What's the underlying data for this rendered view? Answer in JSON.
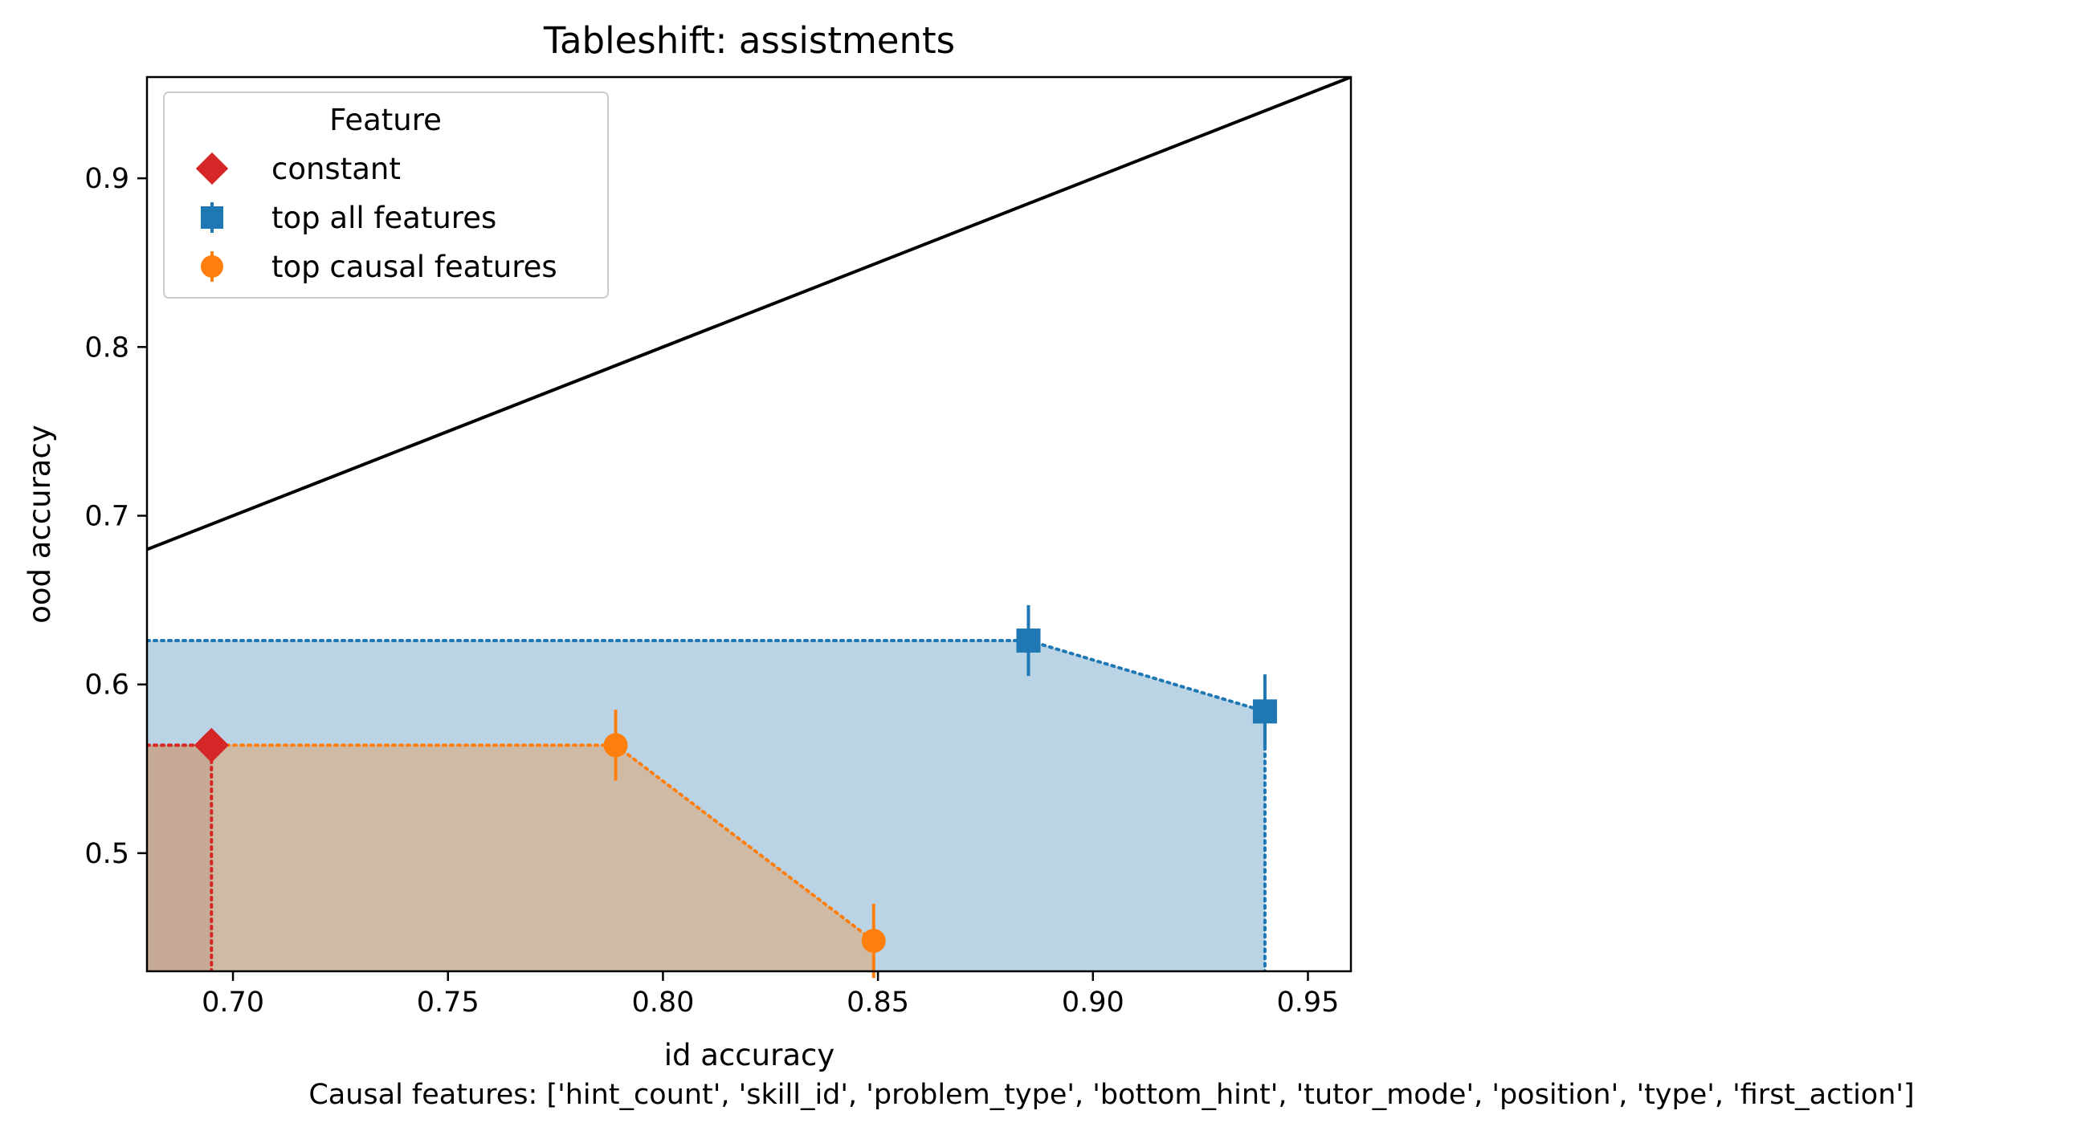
{
  "chart_data": {
    "type": "scatter",
    "title": "Tableshift: assistments",
    "xlabel": "id accuracy",
    "ylabel": "ood accuracy",
    "caption": "Causal features: ['hint_count', 'skill_id', 'problem_type', 'bottom_hint', 'tutor_mode', 'position', 'type', 'first_action']",
    "xlim": [
      0.68,
      0.96
    ],
    "ylim": [
      0.43,
      0.96
    ],
    "x_ticks": [
      0.7,
      0.75,
      0.8,
      0.85,
      0.9,
      0.95
    ],
    "y_ticks": [
      0.5,
      0.6,
      0.7,
      0.8,
      0.9
    ],
    "grid": false,
    "legend": {
      "title": "Feature",
      "placement": "top-left"
    },
    "reference_line": {
      "points": [
        [
          0.68,
          0.68
        ],
        [
          0.96,
          0.96
        ]
      ],
      "color": "#000000"
    },
    "series": [
      {
        "name": "constant",
        "color": "#d62728",
        "marker": "diamond",
        "points": [
          {
            "x": 0.695,
            "y": 0.564,
            "yerr": 0
          }
        ],
        "frontier": [
          [
            0.68,
            0.564
          ],
          [
            0.695,
            0.564
          ],
          [
            0.695,
            0.43
          ]
        ]
      },
      {
        "name": "top all features",
        "color": "#1f77b4",
        "fill": "#bad4e6",
        "marker": "square",
        "points": [
          {
            "x": 0.885,
            "y": 0.626,
            "yerr": 0.021
          },
          {
            "x": 0.94,
            "y": 0.584,
            "yerr": 0.022
          }
        ],
        "frontier": [
          [
            0.68,
            0.626
          ],
          [
            0.885,
            0.626
          ],
          [
            0.94,
            0.584
          ],
          [
            0.94,
            0.43
          ]
        ]
      },
      {
        "name": "top causal features",
        "color": "#ff7f0e",
        "fill": "#cfbaa6",
        "marker": "circle",
        "points": [
          {
            "x": 0.789,
            "y": 0.564,
            "yerr": 0.021
          },
          {
            "x": 0.849,
            "y": 0.448,
            "yerr": 0.022
          }
        ],
        "frontier": [
          [
            0.68,
            0.564
          ],
          [
            0.789,
            0.564
          ],
          [
            0.849,
            0.448
          ],
          [
            0.849,
            0.43
          ]
        ]
      }
    ]
  }
}
